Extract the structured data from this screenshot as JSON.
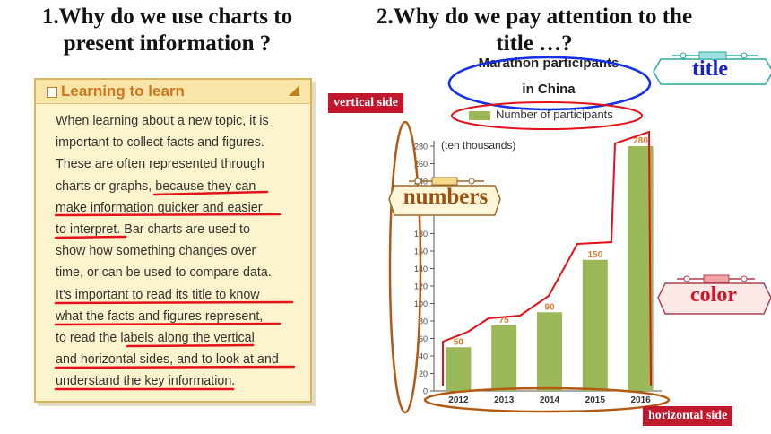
{
  "headings": {
    "q1_line1": "1.Why do we use charts to",
    "q1_line2": "present information ?",
    "q2_line1": "2.Why do we pay attention to the",
    "q2_line2": "title …?"
  },
  "card": {
    "title": "Learning to learn",
    "lines": [
      "When learning about a new topic, it is",
      "important to collect facts and figures.",
      "These are often represented through",
      "charts or graphs, because they can",
      "make information quicker and easier",
      "to interpret. Bar charts are used to",
      "show how something changes over",
      "time, or can be used to compare data.",
      "It's important to read its title to know",
      "what the facts and figures represent,",
      "to read the labels along the vertical",
      "and horizontal sides, and to look at and",
      "understand the key information."
    ]
  },
  "annotations": {
    "title_label": "title",
    "numbers_label": "numbers",
    "color_label": "color",
    "vertical_tag": "vertical side",
    "horizontal_tag": "horizontal side"
  },
  "colors": {
    "bar": "#9cb95a",
    "highlight_red": "#e3121b",
    "oval_blue": "#1430e8",
    "oval_brown": "#b35a12",
    "tag_red": "#c0182d",
    "label_blue": "#1622c6",
    "label_red": "#d4142a",
    "label_brown": "#9a5010"
  },
  "chart_data": {
    "type": "bar",
    "title": "Marathon participants in China",
    "title_line1": "Marathon participants",
    "title_line2": "in China",
    "legend": "Number of participants",
    "ylabel": "(ten thousands)",
    "categories": [
      "2012",
      "2013",
      "2014",
      "2015",
      "2016"
    ],
    "values": [
      50,
      75,
      90,
      150,
      280
    ],
    "value_labels": [
      "50",
      "75",
      "90",
      "150",
      "280"
    ],
    "yticks": [
      0,
      20,
      40,
      60,
      80,
      100,
      120,
      140,
      160,
      180,
      240,
      260,
      280
    ],
    "ylim": [
      0,
      290
    ],
    "grid": false
  }
}
